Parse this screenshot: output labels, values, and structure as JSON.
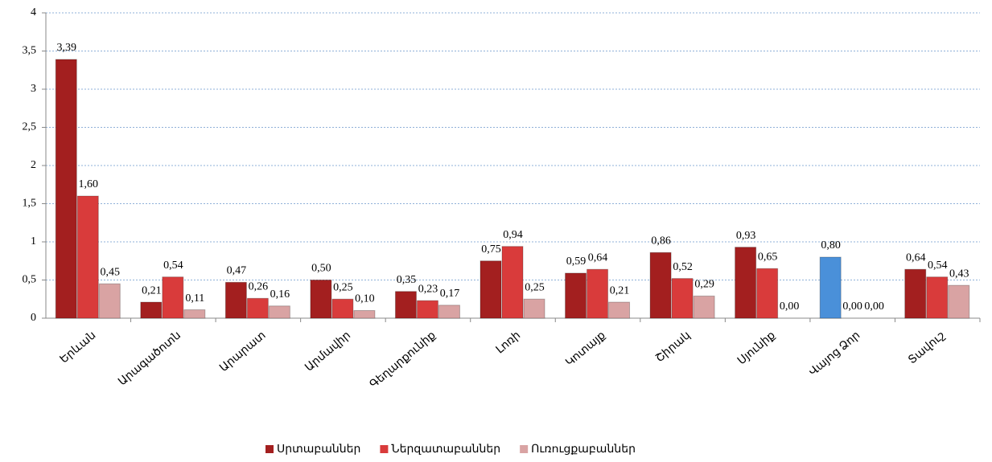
{
  "chart_data": {
    "type": "bar",
    "categories": [
      "Երևան",
      "Արագածոտն",
      "Արարատ",
      "Արմավիր",
      "Գեղարքունիք",
      "Լոռի",
      "Կոտայք",
      "Շիրակ",
      "Սյունիք",
      "Վայոց Ձոր",
      "Տավուշ"
    ],
    "series": [
      {
        "name": "Սրտաբաններ",
        "color": "#a31f1f",
        "point_colors": [
          "#a31f1f",
          "#a31f1f",
          "#a31f1f",
          "#a31f1f",
          "#a31f1f",
          "#a31f1f",
          "#a31f1f",
          "#a31f1f",
          "#a31f1f",
          "#4a90d9",
          "#a31f1f"
        ],
        "values": [
          3.39,
          0.21,
          0.47,
          0.5,
          0.35,
          0.75,
          0.59,
          0.86,
          0.93,
          0.8,
          0.64
        ],
        "value_labels": [
          "3,39",
          "0,21",
          "0,47",
          "0,50",
          "0,35",
          "0,75",
          "0,59",
          "0,86",
          "0,93",
          "0,80",
          "0,64"
        ]
      },
      {
        "name": "Ներզատաբաններ",
        "color": "#d93b3b",
        "values": [
          1.6,
          0.54,
          0.26,
          0.25,
          0.23,
          0.94,
          0.64,
          0.52,
          0.65,
          0.0,
          0.54
        ],
        "value_labels": [
          "1,60",
          "0,54",
          "0,26",
          "0,25",
          "0,23",
          "0,94",
          "0,64",
          "0,52",
          "0,65",
          "0,00",
          "0,54"
        ]
      },
      {
        "name": "Ուռուցքաբաններ",
        "color": "#d9a3a3",
        "values": [
          0.45,
          0.11,
          0.16,
          0.1,
          0.17,
          0.25,
          0.21,
          0.29,
          0.0,
          0.0,
          0.43
        ],
        "value_labels": [
          "0,45",
          "0,11",
          "0,16",
          "0,10",
          "0,17",
          "0,25",
          "0,21",
          "0,29",
          "0,00",
          "0,00",
          "0,43"
        ]
      }
    ],
    "ylim": [
      0,
      4
    ],
    "yticks": [
      0,
      {
        "value": 0.5,
        "label": "0,5"
      },
      1,
      {
        "value": 1.5,
        "label": "1,5"
      },
      2,
      {
        "value": 2.5,
        "label": "2,5"
      },
      3,
      {
        "value": 3.5,
        "label": "3,5"
      },
      4
    ],
    "grid": true,
    "legend": "bottom"
  }
}
